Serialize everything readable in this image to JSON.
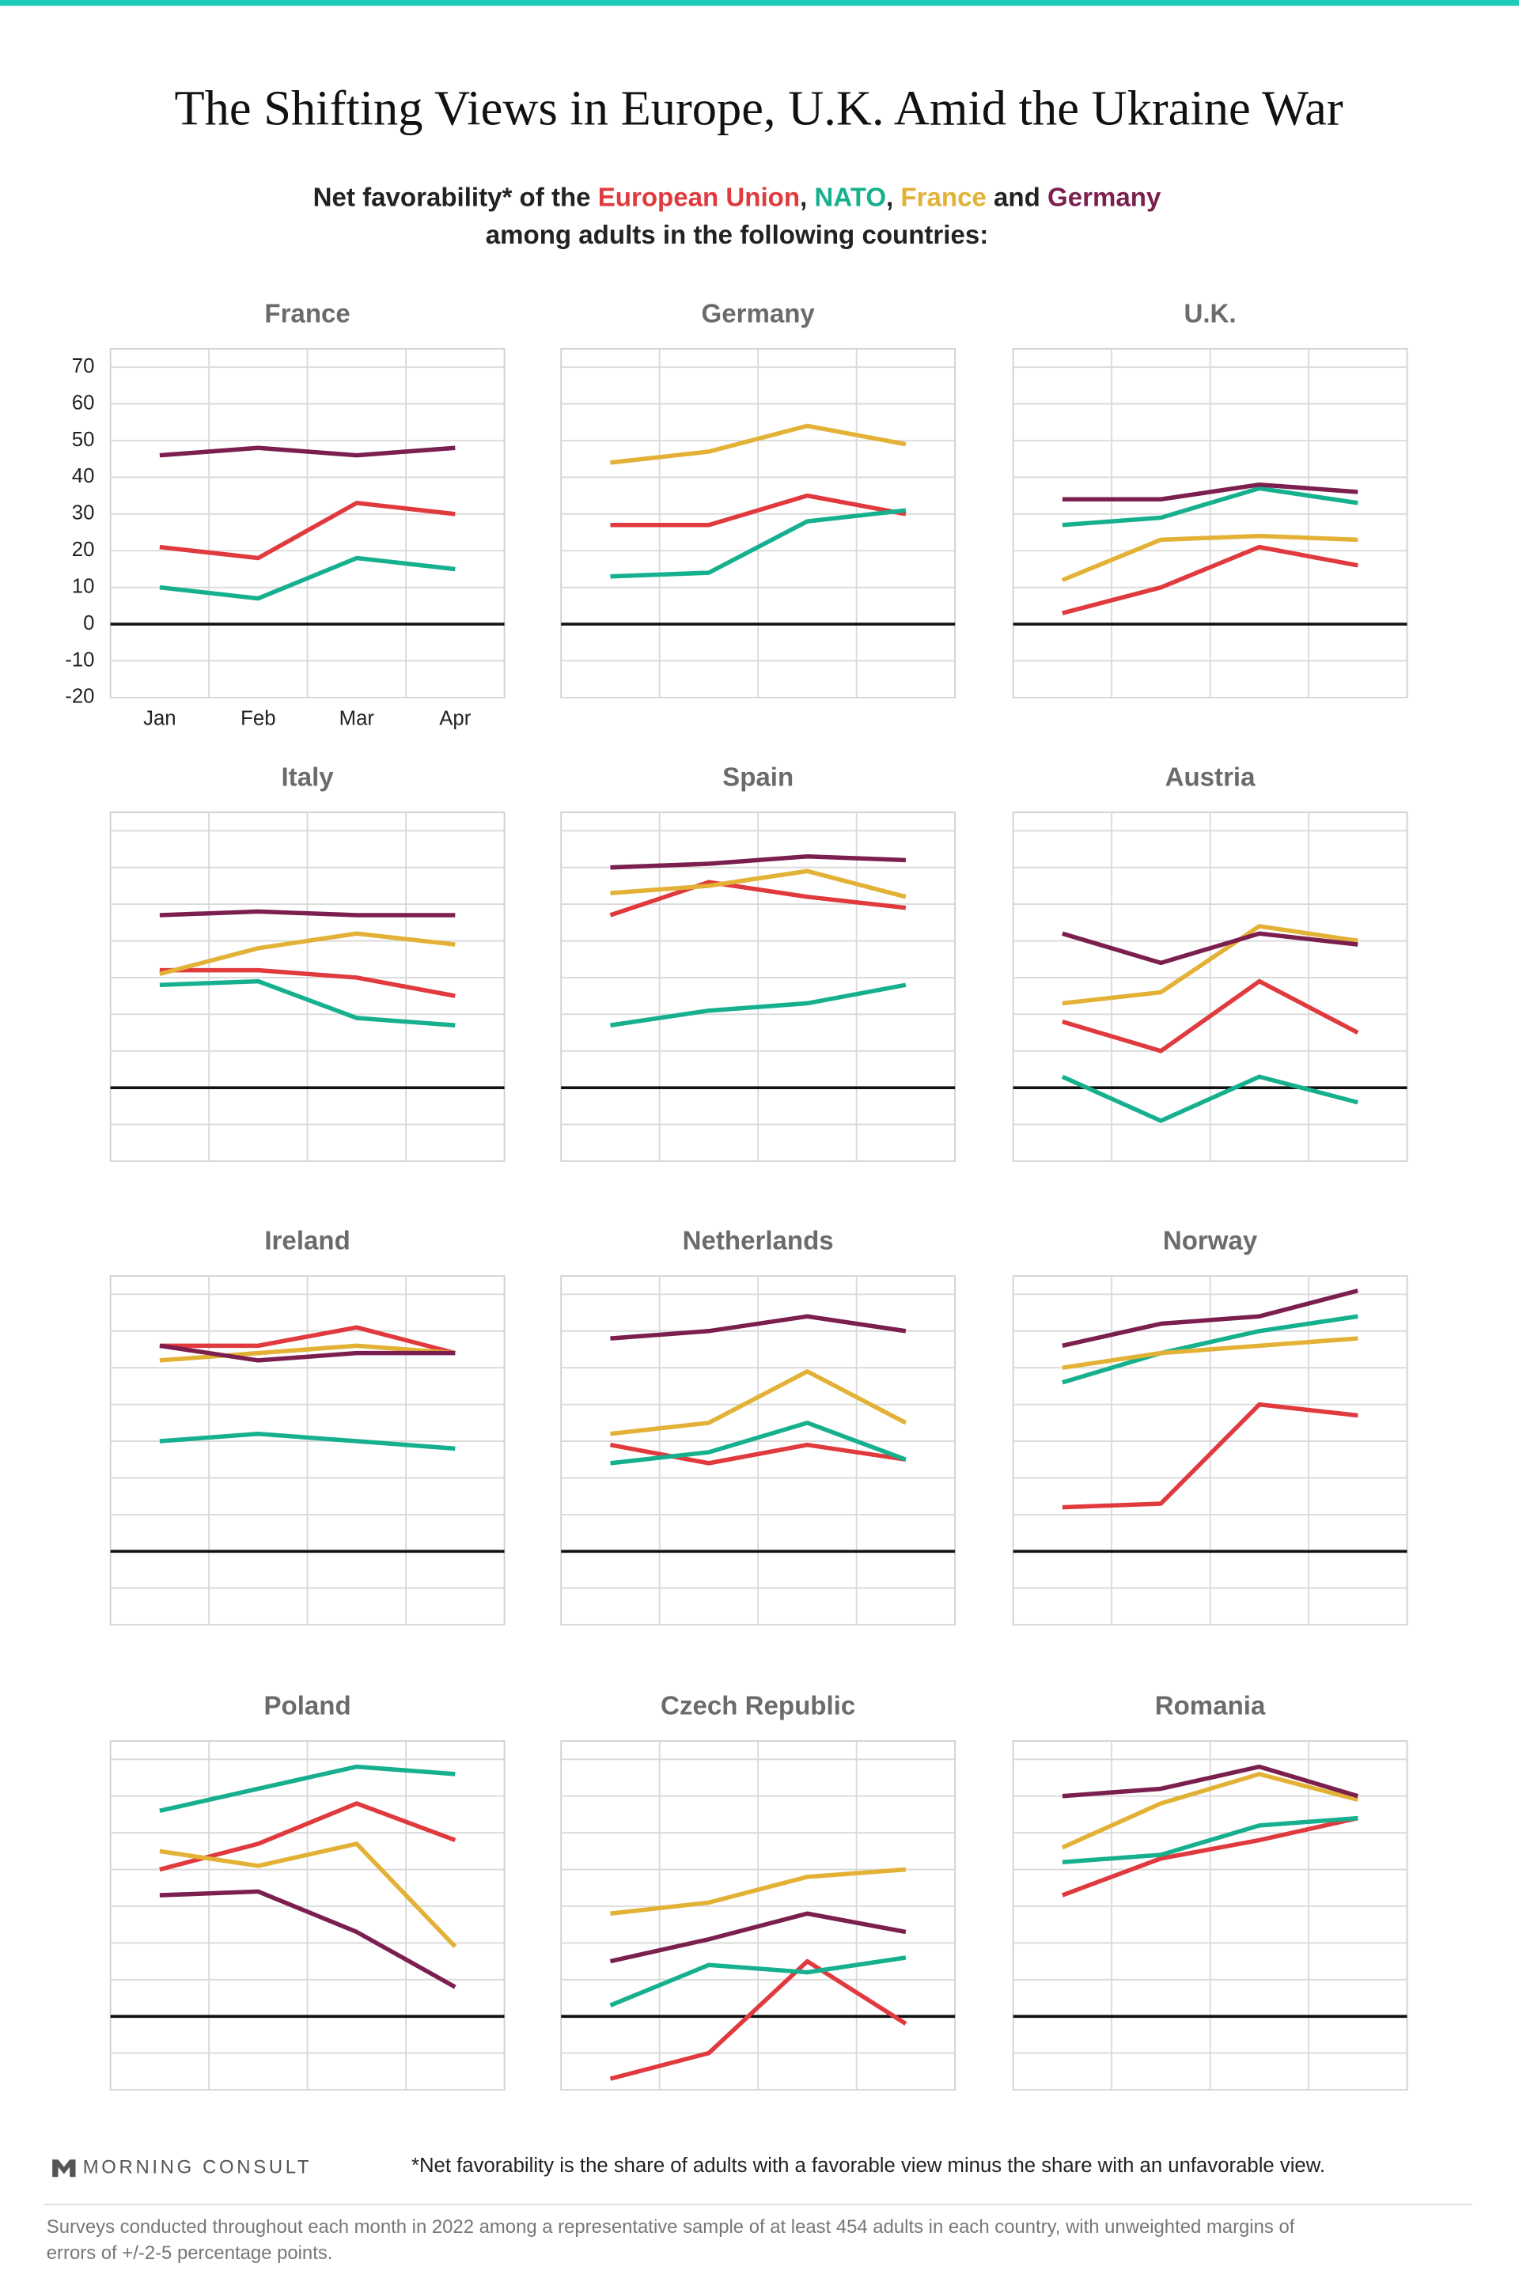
{
  "header": {
    "title": "The Shifting Views in Europe, U.K. Amid the Ukraine War",
    "subtitle_pre": "Net favorability* of the ",
    "sep1": ", ",
    "sep2": ", ",
    "sep3": " and ",
    "subtitle_line2": "among adults in the following countries:"
  },
  "legend": [
    {
      "name": "European Union",
      "color": "#e03a3e"
    },
    {
      "name": "NATO",
      "color": "#16b08f"
    },
    {
      "name": "France",
      "color": "#e2b135"
    },
    {
      "name": "Germany",
      "color": "#7b1f4f"
    }
  ],
  "chart_data": [
    {
      "type": "line",
      "title": "France",
      "categories": [
        "Jan",
        "Feb",
        "Mar",
        "Apr"
      ],
      "ylim": [
        -20,
        75
      ],
      "yticks": [
        -20,
        -10,
        0,
        10,
        20,
        30,
        40,
        50,
        60,
        70
      ],
      "grid": true,
      "series": [
        {
          "values": [
            21,
            18,
            33,
            30
          ]
        },
        {
          "values": [
            10,
            7,
            18,
            15
          ]
        },
        {
          "values": [
            null,
            null,
            null,
            null
          ]
        },
        {
          "values": [
            46,
            48,
            46,
            48
          ]
        }
      ]
    },
    {
      "type": "line",
      "title": "Germany",
      "series": [
        {
          "values": [
            27,
            27,
            35,
            30
          ]
        },
        {
          "values": [
            13,
            14,
            28,
            31
          ]
        },
        {
          "values": [
            44,
            47,
            54,
            49
          ]
        },
        {
          "values": [
            null,
            null,
            null,
            null
          ]
        }
      ]
    },
    {
      "type": "line",
      "title": "U.K.",
      "series": [
        {
          "values": [
            3,
            10,
            21,
            16
          ]
        },
        {
          "values": [
            27,
            29,
            37,
            33
          ]
        },
        {
          "values": [
            12,
            23,
            24,
            23
          ]
        },
        {
          "values": [
            34,
            34,
            38,
            36
          ]
        }
      ]
    },
    {
      "type": "line",
      "title": "Italy",
      "series": [
        {
          "values": [
            32,
            32,
            30,
            25
          ]
        },
        {
          "values": [
            28,
            29,
            19,
            17
          ]
        },
        {
          "values": [
            31,
            38,
            42,
            39
          ]
        },
        {
          "values": [
            47,
            48,
            47,
            47
          ]
        }
      ]
    },
    {
      "type": "line",
      "title": "Spain",
      "series": [
        {
          "values": [
            47,
            56,
            52,
            49
          ]
        },
        {
          "values": [
            17,
            21,
            23,
            28
          ]
        },
        {
          "values": [
            53,
            55,
            59,
            52
          ]
        },
        {
          "values": [
            60,
            61,
            63,
            62
          ]
        }
      ]
    },
    {
      "type": "line",
      "title": "Austria",
      "series": [
        {
          "values": [
            18,
            10,
            29,
            15
          ]
        },
        {
          "values": [
            3,
            -9,
            3,
            -4
          ]
        },
        {
          "values": [
            23,
            26,
            44,
            40
          ]
        },
        {
          "values": [
            42,
            34,
            42,
            39
          ]
        }
      ]
    },
    {
      "type": "line",
      "title": "Ireland",
      "series": [
        {
          "values": [
            56,
            56,
            61,
            54
          ]
        },
        {
          "values": [
            30,
            32,
            30,
            28
          ]
        },
        {
          "values": [
            52,
            54,
            56,
            54
          ]
        },
        {
          "values": [
            56,
            52,
            54,
            54
          ]
        }
      ]
    },
    {
      "type": "line",
      "title": "Netherlands",
      "series": [
        {
          "values": [
            29,
            24,
            29,
            25
          ]
        },
        {
          "values": [
            24,
            27,
            35,
            25
          ]
        },
        {
          "values": [
            32,
            35,
            49,
            35
          ]
        },
        {
          "values": [
            58,
            60,
            64,
            60
          ]
        }
      ]
    },
    {
      "type": "line",
      "title": "Norway",
      "series": [
        {
          "values": [
            12,
            13,
            40,
            37
          ]
        },
        {
          "values": [
            46,
            54,
            60,
            64
          ]
        },
        {
          "values": [
            50,
            54,
            56,
            58
          ]
        },
        {
          "values": [
            56,
            62,
            64,
            71
          ]
        }
      ]
    },
    {
      "type": "line",
      "title": "Poland",
      "series": [
        {
          "values": [
            40,
            47,
            58,
            48
          ]
        },
        {
          "values": [
            56,
            62,
            68,
            66
          ]
        },
        {
          "values": [
            45,
            41,
            47,
            19
          ]
        },
        {
          "values": [
            33,
            34,
            23,
            8
          ]
        }
      ]
    },
    {
      "type": "line",
      "title": "Czech Republic",
      "series": [
        {
          "values": [
            -17,
            -10,
            15,
            -2
          ]
        },
        {
          "values": [
            3,
            14,
            12,
            16
          ]
        },
        {
          "values": [
            28,
            31,
            38,
            40
          ]
        },
        {
          "values": [
            15,
            21,
            28,
            23
          ]
        }
      ]
    },
    {
      "type": "line",
      "title": "Romania",
      "series": [
        {
          "values": [
            33,
            43,
            48,
            54
          ]
        },
        {
          "values": [
            42,
            44,
            52,
            54
          ]
        },
        {
          "values": [
            46,
            58,
            66,
            59
          ]
        },
        {
          "values": [
            60,
            62,
            68,
            60
          ]
        }
      ]
    }
  ],
  "footer": {
    "brand": "MORNING CONSULT",
    "note": "*Net favorability is the share of adults with a favorable view minus the share with an unfavorable view.",
    "source_line1": "Surveys conducted throughout each month in 2022 among a representative sample of at least 454 adults in each country, with unweighted margins of",
    "source_line2": "errors of +/-2-5 percentage points."
  }
}
